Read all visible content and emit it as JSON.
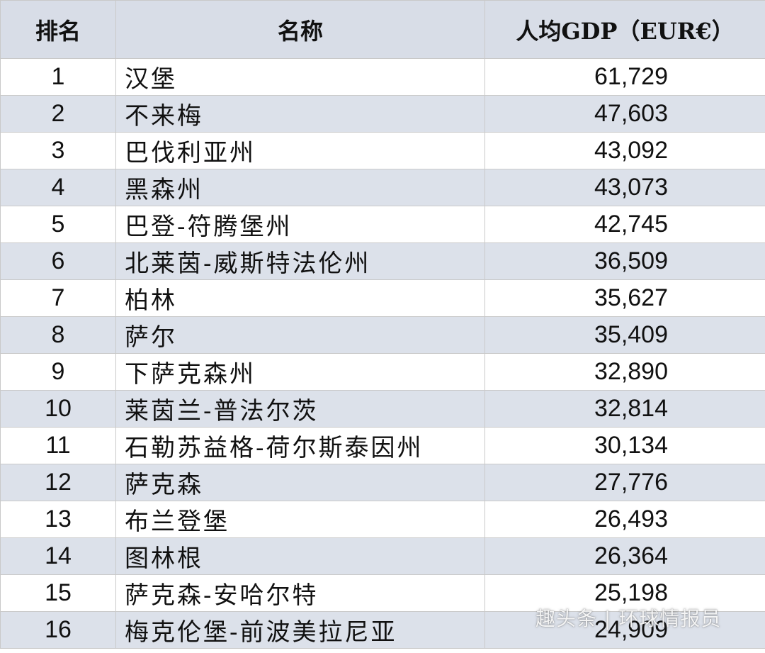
{
  "header": {
    "rank": "排名",
    "name": "名称",
    "gdp": "人均GDP（EUR€）"
  },
  "rows": [
    {
      "rank": "1",
      "name": "汉堡",
      "gdp": "61,729"
    },
    {
      "rank": "2",
      "name": "不来梅",
      "gdp": "47,603"
    },
    {
      "rank": "3",
      "name": "巴伐利亚州",
      "gdp": "43,092"
    },
    {
      "rank": "4",
      "name": "黑森州",
      "gdp": "43,073"
    },
    {
      "rank": "5",
      "name": "巴登-符腾堡州",
      "gdp": "42,745"
    },
    {
      "rank": "6",
      "name": "北莱茵-威斯特法伦州",
      "gdp": "36,509"
    },
    {
      "rank": "7",
      "name": "柏林",
      "gdp": "35,627"
    },
    {
      "rank": "8",
      "name": "萨尔",
      "gdp": "35,409"
    },
    {
      "rank": "9",
      "name": "下萨克森州",
      "gdp": "32,890"
    },
    {
      "rank": "10",
      "name": "莱茵兰-普法尔茨",
      "gdp": "32,814"
    },
    {
      "rank": "11",
      "name": "石勒苏益格-荷尔斯泰因州",
      "gdp": "30,134"
    },
    {
      "rank": "12",
      "name": "萨克森",
      "gdp": "27,776"
    },
    {
      "rank": "13",
      "name": "布兰登堡",
      "gdp": "26,493"
    },
    {
      "rank": "14",
      "name": "图林根",
      "gdp": "26,364"
    },
    {
      "rank": "15",
      "name": "萨克森-安哈尔特",
      "gdp": "25,198"
    },
    {
      "rank": "16",
      "name": "梅克伦堡-前波美拉尼亚",
      "gdp": "24,909"
    }
  ],
  "watermark": "趣头条 | 环球情报员",
  "colors": {
    "header_bg": "#d8dde7",
    "alt_row_bg": "#dce1ea",
    "plain_row_bg": "#ffffff",
    "border": "#c9c9c9"
  }
}
